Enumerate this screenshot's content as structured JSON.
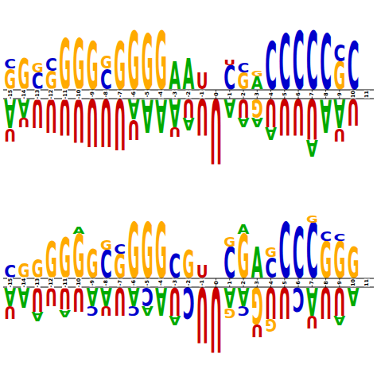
{
  "chart_data": [
    {
      "type": "sequence_logo",
      "tick_labels": "x",
      "letter_colors": {
        "A": "#00aa00",
        "U": "#cc0000",
        "G": "#ffaa00",
        "C": "#0000cc"
      },
      "xlim": [
        -15.5,
        11.5
      ],
      "ylim": [
        -2.5,
        2.5
      ],
      "xticks": [
        -15,
        -14,
        -13,
        -12,
        -11,
        -10,
        -9,
        -8,
        -7,
        -6,
        -5,
        -4,
        -3,
        -2,
        -1,
        0,
        1,
        2,
        3,
        4,
        5,
        6,
        7,
        8,
        9,
        10,
        11
      ],
      "above": [
        {
          "x": -15,
          "letters": [
            "G",
            "C"
          ],
          "values": [
            0.55,
            0.25
          ]
        },
        {
          "x": -14,
          "letters": [
            "G"
          ],
          "values": [
            0.85
          ]
        },
        {
          "x": -13,
          "letters": [
            "C",
            "G"
          ],
          "values": [
            0.45,
            0.25
          ]
        },
        {
          "x": -12,
          "letters": [
            "G",
            "C"
          ],
          "values": [
            0.5,
            0.35
          ]
        },
        {
          "x": -11,
          "letters": [
            "G"
          ],
          "values": [
            1.4
          ]
        },
        {
          "x": -10,
          "letters": [
            "G"
          ],
          "values": [
            1.4
          ]
        },
        {
          "x": -9,
          "letters": [
            "G"
          ],
          "values": [
            1.3
          ]
        },
        {
          "x": -8,
          "letters": [
            "C",
            "G"
          ],
          "values": [
            0.55,
            0.35
          ]
        },
        {
          "x": -7,
          "letters": [
            "G"
          ],
          "values": [
            1.3
          ]
        },
        {
          "x": -6,
          "letters": [
            "G"
          ],
          "values": [
            1.6
          ]
        },
        {
          "x": -5,
          "letters": [
            "G"
          ],
          "values": [
            1.5
          ]
        },
        {
          "x": -4,
          "letters": [
            "G"
          ],
          "values": [
            1.6
          ]
        },
        {
          "x": -3,
          "letters": [
            "A"
          ],
          "values": [
            0.75
          ]
        },
        {
          "x": -2,
          "letters": [
            "A"
          ],
          "values": [
            0.85
          ]
        },
        {
          "x": -1,
          "letters": [
            "U"
          ],
          "values": [
            0.45
          ]
        },
        {
          "x": 1,
          "letters": [
            "C",
            "U"
          ],
          "values": [
            0.65,
            0.15
          ]
        },
        {
          "x": 2,
          "letters": [
            "G",
            "C"
          ],
          "values": [
            0.45,
            0.25
          ]
        },
        {
          "x": 3,
          "letters": [
            "A",
            "G"
          ],
          "values": [
            0.35,
            0.15
          ]
        },
        {
          "x": 4,
          "letters": [
            "C"
          ],
          "values": [
            1.3
          ]
        },
        {
          "x": 5,
          "letters": [
            "C"
          ],
          "values": [
            1.5
          ]
        },
        {
          "x": 6,
          "letters": [
            "C"
          ],
          "values": [
            1.6
          ]
        },
        {
          "x": 7,
          "letters": [
            "C"
          ],
          "values": [
            1.6
          ]
        },
        {
          "x": 8,
          "letters": [
            "C"
          ],
          "values": [
            1.5
          ]
        },
        {
          "x": 9,
          "letters": [
            "G",
            "C"
          ],
          "values": [
            0.75,
            0.45
          ]
        },
        {
          "x": 10,
          "letters": [
            "C"
          ],
          "values": [
            1.3
          ]
        }
      ],
      "below": [
        {
          "x": -15,
          "letters": [
            "A",
            "U"
          ],
          "values": [
            0.8,
            0.35
          ]
        },
        {
          "x": -14,
          "letters": [
            "A",
            "U"
          ],
          "values": [
            0.5,
            0.25
          ]
        },
        {
          "x": -13,
          "letters": [
            "U"
          ],
          "values": [
            0.8
          ]
        },
        {
          "x": -12,
          "letters": [
            "U"
          ],
          "values": [
            0.9
          ]
        },
        {
          "x": -11,
          "letters": [
            "U"
          ],
          "values": [
            1.0
          ]
        },
        {
          "x": -10,
          "letters": [
            "U"
          ],
          "values": [
            1.2
          ]
        },
        {
          "x": -9,
          "letters": [
            "U"
          ],
          "values": [
            1.3
          ]
        },
        {
          "x": -8,
          "letters": [
            "U"
          ],
          "values": [
            1.3
          ]
        },
        {
          "x": -7,
          "letters": [
            "U"
          ],
          "values": [
            1.4
          ]
        },
        {
          "x": -6,
          "letters": [
            "A",
            "U"
          ],
          "values": [
            0.55,
            0.55
          ]
        },
        {
          "x": -5,
          "letters": [
            "A"
          ],
          "values": [
            0.9
          ]
        },
        {
          "x": -4,
          "letters": [
            "A"
          ],
          "values": [
            0.9
          ]
        },
        {
          "x": -3,
          "letters": [
            "A",
            "U"
          ],
          "values": [
            0.75,
            0.25
          ]
        },
        {
          "x": -2,
          "letters": [
            "U",
            "A"
          ],
          "values": [
            0.5,
            0.35
          ]
        },
        {
          "x": -1,
          "letters": [
            "U"
          ],
          "values": [
            1.0
          ]
        },
        {
          "x": 0,
          "letters": [
            "U"
          ],
          "values": [
            1.8
          ]
        },
        {
          "x": 1,
          "letters": [
            "A"
          ],
          "values": [
            0.5
          ]
        },
        {
          "x": 2,
          "letters": [
            "U",
            "A"
          ],
          "values": [
            0.5,
            0.25
          ]
        },
        {
          "x": 3,
          "letters": [
            "G",
            "A"
          ],
          "values": [
            0.5,
            0.25
          ]
        },
        {
          "x": 4,
          "letters": [
            "U",
            "A"
          ],
          "values": [
            0.75,
            0.35
          ]
        },
        {
          "x": 5,
          "letters": [
            "U"
          ],
          "values": [
            1.0
          ]
        },
        {
          "x": 6,
          "letters": [
            "U"
          ],
          "values": [
            1.0
          ]
        },
        {
          "x": 7,
          "letters": [
            "U",
            "A"
          ],
          "values": [
            1.1,
            0.45
          ]
        },
        {
          "x": 8,
          "letters": [
            "A"
          ],
          "values": [
            0.9
          ]
        },
        {
          "x": 9,
          "letters": [
            "A",
            "U"
          ],
          "values": [
            0.8,
            0.35
          ]
        },
        {
          "x": 10,
          "letters": [
            "U"
          ],
          "values": [
            0.7
          ]
        }
      ]
    },
    {
      "type": "sequence_logo",
      "tick_labels": "x",
      "letter_colors": {
        "A": "#00aa00",
        "U": "#cc0000",
        "G": "#ffaa00",
        "C": "#0000cc"
      },
      "xlim": [
        -15.5,
        11.5
      ],
      "ylim": [
        -2.5,
        2.5
      ],
      "xticks": [
        -15,
        -14,
        -13,
        -12,
        -11,
        -10,
        -9,
        -8,
        -7,
        -6,
        -5,
        -4,
        -3,
        -2,
        -1,
        0,
        1,
        2,
        3,
        4,
        5,
        6,
        7,
        8,
        9,
        10,
        11
      ],
      "above": [
        {
          "x": -15,
          "letters": [
            "C"
          ],
          "values": [
            0.35
          ]
        },
        {
          "x": -14,
          "letters": [
            "G"
          ],
          "values": [
            0.4
          ]
        },
        {
          "x": -13,
          "letters": [
            "G"
          ],
          "values": [
            0.5
          ]
        },
        {
          "x": -12,
          "letters": [
            "G"
          ],
          "values": [
            1.0
          ]
        },
        {
          "x": -11,
          "letters": [
            "G"
          ],
          "values": [
            1.1
          ]
        },
        {
          "x": -10,
          "letters": [
            "G",
            "A"
          ],
          "values": [
            1.2,
            0.2
          ]
        },
        {
          "x": -9,
          "letters": [
            "G"
          ],
          "values": [
            0.8
          ]
        },
        {
          "x": -8,
          "letters": [
            "C",
            "G"
          ],
          "values": [
            0.75,
            0.25
          ]
        },
        {
          "x": -7,
          "letters": [
            "G",
            "C"
          ],
          "values": [
            0.65,
            0.25
          ]
        },
        {
          "x": -6,
          "letters": [
            "G"
          ],
          "values": [
            1.5
          ]
        },
        {
          "x": -5,
          "letters": [
            "G"
          ],
          "values": [
            1.5
          ]
        },
        {
          "x": -4,
          "letters": [
            "G"
          ],
          "values": [
            1.5
          ]
        },
        {
          "x": -3,
          "letters": [
            "C"
          ],
          "values": [
            0.65
          ]
        },
        {
          "x": -2,
          "letters": [
            "G"
          ],
          "values": [
            0.75
          ]
        },
        {
          "x": -1,
          "letters": [
            "U"
          ],
          "values": [
            0.35
          ]
        },
        {
          "x": 1,
          "letters": [
            "C",
            "G"
          ],
          "values": [
            0.85,
            0.25
          ]
        },
        {
          "x": 2,
          "letters": [
            "G",
            "A"
          ],
          "values": [
            1.2,
            0.25
          ]
        },
        {
          "x": 3,
          "letters": [
            "A"
          ],
          "values": [
            0.85
          ]
        },
        {
          "x": 4,
          "letters": [
            "C",
            "G"
          ],
          "values": [
            0.55,
            0.25
          ]
        },
        {
          "x": 5,
          "letters": [
            "C"
          ],
          "values": [
            1.5
          ]
        },
        {
          "x": 6,
          "letters": [
            "C"
          ],
          "values": [
            1.4
          ]
        },
        {
          "x": 7,
          "letters": [
            "C",
            "G"
          ],
          "values": [
            1.5,
            0.2
          ]
        },
        {
          "x": 8,
          "letters": [
            "G",
            "C"
          ],
          "values": [
            1.0,
            0.25
          ]
        },
        {
          "x": 9,
          "letters": [
            "G",
            "C"
          ],
          "values": [
            1.0,
            0.2
          ]
        },
        {
          "x": 10,
          "letters": [
            "G"
          ],
          "values": [
            0.85
          ]
        }
      ],
      "below": [
        {
          "x": -15,
          "letters": [
            "A",
            "U"
          ],
          "values": [
            0.5,
            0.35
          ]
        },
        {
          "x": -14,
          "letters": [
            "A"
          ],
          "values": [
            0.55
          ]
        },
        {
          "x": -13,
          "letters": [
            "U",
            "A"
          ],
          "values": [
            0.65,
            0.25
          ]
        },
        {
          "x": -12,
          "letters": [
            "U"
          ],
          "values": [
            0.5
          ]
        },
        {
          "x": -11,
          "letters": [
            "U",
            "A"
          ],
          "values": [
            0.6,
            0.2
          ]
        },
        {
          "x": -10,
          "letters": [
            "U"
          ],
          "values": [
            0.65
          ]
        },
        {
          "x": -9,
          "letters": [
            "A",
            "C"
          ],
          "values": [
            0.5,
            0.25
          ]
        },
        {
          "x": -8,
          "letters": [
            "A",
            "U"
          ],
          "values": [
            0.5,
            0.25
          ]
        },
        {
          "x": -7,
          "letters": [
            "U"
          ],
          "values": [
            0.75
          ]
        },
        {
          "x": -6,
          "letters": [
            "A",
            "C"
          ],
          "values": [
            0.5,
            0.25
          ]
        },
        {
          "x": -5,
          "letters": [
            "C",
            "A"
          ],
          "values": [
            0.5,
            0.25
          ]
        },
        {
          "x": -4,
          "letters": [
            "A"
          ],
          "values": [
            0.75
          ]
        },
        {
          "x": -3,
          "letters": [
            "U",
            "A"
          ],
          "values": [
            0.75,
            0.25
          ]
        },
        {
          "x": -2,
          "letters": [
            "C"
          ],
          "values": [
            0.85
          ]
        },
        {
          "x": -1,
          "letters": [
            "U"
          ],
          "values": [
            1.5
          ]
        },
        {
          "x": 0,
          "letters": [
            "U"
          ],
          "values": [
            1.8
          ]
        },
        {
          "x": 1,
          "letters": [
            "A",
            "G"
          ],
          "values": [
            0.55,
            0.25
          ]
        },
        {
          "x": 2,
          "letters": [
            "A",
            "C"
          ],
          "values": [
            0.5,
            0.25
          ]
        },
        {
          "x": 3,
          "letters": [
            "G",
            "U"
          ],
          "values": [
            1.0,
            0.35
          ]
        },
        {
          "x": 4,
          "letters": [
            "U",
            "G"
          ],
          "values": [
            0.85,
            0.35
          ]
        },
        {
          "x": 5,
          "letters": [
            "U"
          ],
          "values": [
            0.85
          ]
        },
        {
          "x": 6,
          "letters": [
            "C"
          ],
          "values": [
            0.65
          ]
        },
        {
          "x": 7,
          "letters": [
            "A",
            "U"
          ],
          "values": [
            0.75,
            0.35
          ]
        },
        {
          "x": 8,
          "letters": [
            "U"
          ],
          "values": [
            0.85
          ]
        },
        {
          "x": 9,
          "letters": [
            "U",
            "A"
          ],
          "values": [
            0.75,
            0.25
          ]
        },
        {
          "x": 10,
          "letters": [
            "A"
          ],
          "values": [
            0.5
          ]
        }
      ]
    }
  ]
}
